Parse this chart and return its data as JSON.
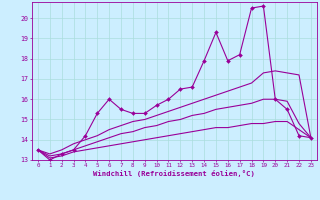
{
  "x_data": [
    0,
    1,
    2,
    3,
    4,
    5,
    6,
    7,
    8,
    9,
    10,
    11,
    12,
    13,
    14,
    15,
    16,
    17,
    18,
    19,
    20,
    21,
    22,
    23
  ],
  "main_line": [
    13.5,
    13.0,
    13.3,
    13.5,
    14.2,
    15.3,
    16.0,
    15.5,
    15.3,
    15.3,
    15.7,
    16.0,
    16.5,
    16.6,
    17.9,
    19.3,
    17.9,
    18.2,
    20.5,
    20.6,
    16.0,
    15.5,
    14.2,
    14.1
  ],
  "reg_line1": [
    13.5,
    13.3,
    13.5,
    13.8,
    14.0,
    14.2,
    14.5,
    14.7,
    14.9,
    15.0,
    15.2,
    15.4,
    15.6,
    15.8,
    16.0,
    16.2,
    16.4,
    16.6,
    16.8,
    17.3,
    17.4,
    17.3,
    17.2,
    14.1
  ],
  "reg_line2": [
    13.5,
    13.2,
    13.3,
    13.5,
    13.7,
    13.9,
    14.1,
    14.3,
    14.4,
    14.6,
    14.7,
    14.9,
    15.0,
    15.2,
    15.3,
    15.5,
    15.6,
    15.7,
    15.8,
    16.0,
    16.0,
    15.9,
    14.8,
    14.1
  ],
  "reg_line3": [
    13.5,
    13.1,
    13.2,
    13.4,
    13.5,
    13.6,
    13.7,
    13.8,
    13.9,
    14.0,
    14.1,
    14.2,
    14.3,
    14.4,
    14.5,
    14.6,
    14.6,
    14.7,
    14.8,
    14.8,
    14.9,
    14.9,
    14.5,
    14.1
  ],
  "line_color": "#990099",
  "bg_color": "#cceeff",
  "grid_color": "#aadddd",
  "xlabel": "Windchill (Refroidissement éolien,°C)",
  "xlim": [
    -0.5,
    23.5
  ],
  "ylim": [
    13,
    20.8
  ],
  "yticks": [
    13,
    14,
    15,
    16,
    17,
    18,
    19,
    20
  ],
  "xticks": [
    0,
    1,
    2,
    3,
    4,
    5,
    6,
    7,
    8,
    9,
    10,
    11,
    12,
    13,
    14,
    15,
    16,
    17,
    18,
    19,
    20,
    21,
    22,
    23
  ]
}
